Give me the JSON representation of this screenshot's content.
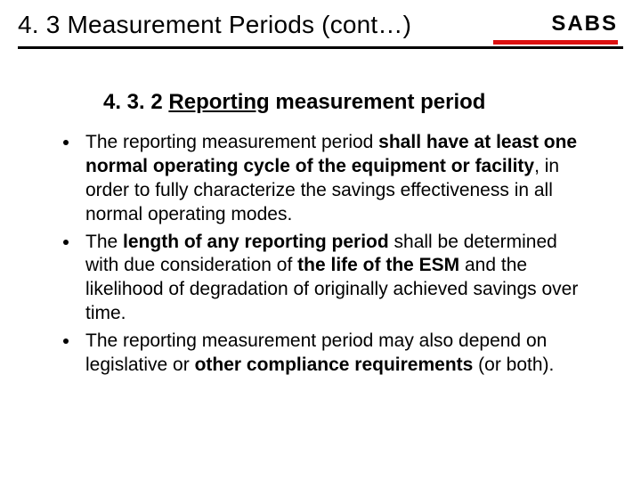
{
  "header": {
    "title": "4. 3 Measurement Periods (cont…)",
    "logo_text": "SABS",
    "logo_underline_color": "#d11a1a",
    "rule_color": "#000000"
  },
  "subtitle": {
    "number": "4. 3. 2 ",
    "first_word": "Reporting",
    "rest": " measurement period"
  },
  "bullets": [
    {
      "parts": [
        {
          "t": "The reporting measurement period ",
          "b": false
        },
        {
          "t": "shall have at least one normal operating cycle of the equipment or facility",
          "b": true
        },
        {
          "t": ", in order to fully characterize the savings effectiveness in all normal operating modes.",
          "b": false
        }
      ]
    },
    {
      "parts": [
        {
          "t": "The ",
          "b": false
        },
        {
          "t": "length of any reporting period ",
          "b": true
        },
        {
          "t": "shall be determined with due consideration of ",
          "b": false
        },
        {
          "t": "the life of the ESM ",
          "b": true
        },
        {
          "t": "and the likelihood of degradation of originally achieved savings over time.",
          "b": false
        }
      ]
    },
    {
      "parts": [
        {
          "t": "The reporting measurement period may also depend on legislative or ",
          "b": false
        },
        {
          "t": "other compliance requirements ",
          "b": true
        },
        {
          "t": "(or both).",
          "b": false
        }
      ]
    }
  ],
  "typography": {
    "title_fontsize": 28,
    "subtitle_fontsize": 24,
    "body_fontsize": 21,
    "font_family": "Arial"
  },
  "colors": {
    "background": "#ffffff",
    "text": "#000000"
  }
}
